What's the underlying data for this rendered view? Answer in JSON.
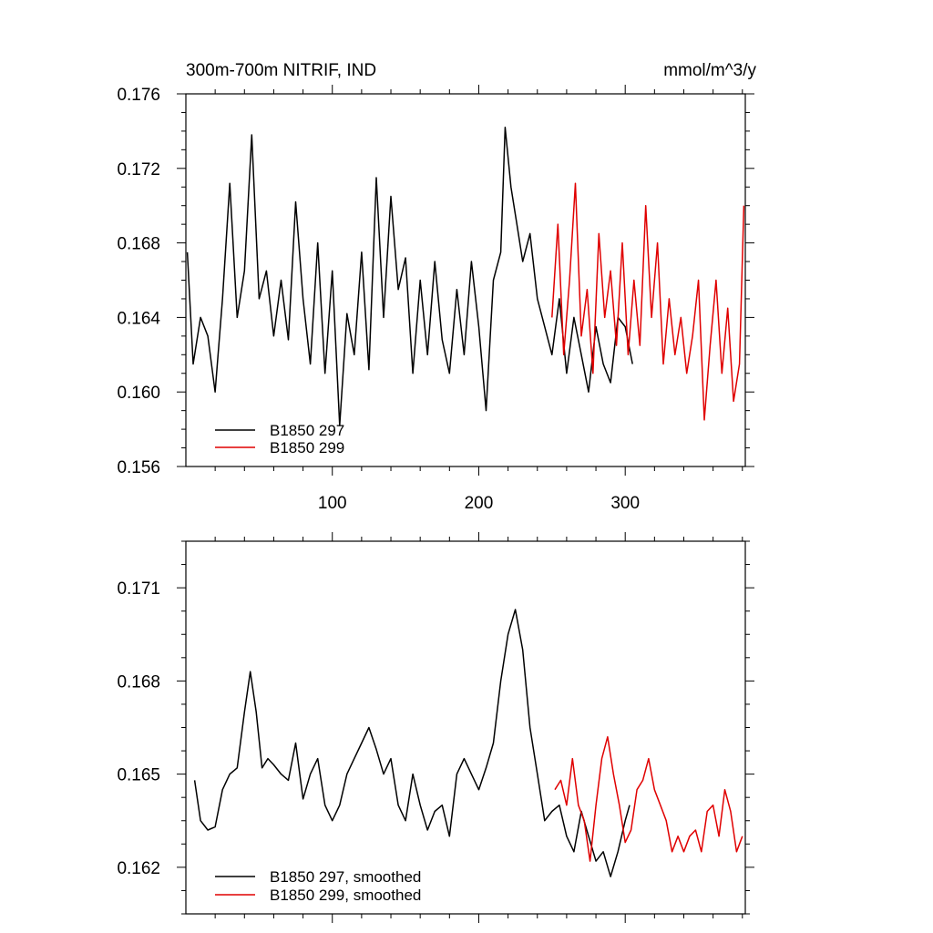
{
  "colors": {
    "series_a": "#000000",
    "series_b": "#e00000"
  },
  "chart_data": [
    {
      "type": "line",
      "title": "300m-700m NITRIF, IND",
      "units": "mmol/m^3/y",
      "xlim": [
        0,
        382
      ],
      "ylim": [
        0.156,
        0.176
      ],
      "xticks": [
        100,
        200,
        300
      ],
      "yticks": [
        0.156,
        0.16,
        0.164,
        0.168,
        0.172,
        0.176
      ],
      "ytick_labels": [
        "0.156",
        "0.160",
        "0.164",
        "0.168",
        "0.172",
        "0.176"
      ],
      "legend": "bottom-left",
      "series": [
        {
          "name": "B1850 297",
          "color": "#000000",
          "x": [
            1,
            5,
            10,
            15,
            20,
            25,
            30,
            35,
            40,
            45,
            50,
            55,
            60,
            65,
            70,
            75,
            80,
            85,
            90,
            95,
            100,
            105,
            110,
            115,
            120,
            125,
            130,
            135,
            140,
            145,
            150,
            155,
            160,
            165,
            170,
            175,
            180,
            185,
            190,
            195,
            200,
            205,
            210,
            215,
            218,
            222,
            226,
            230,
            235,
            240,
            245,
            250,
            255,
            260,
            265,
            270,
            275,
            280,
            285,
            290,
            295,
            300,
            305
          ],
          "y": [
            0.1675,
            0.1615,
            0.164,
            0.163,
            0.16,
            0.165,
            0.1712,
            0.164,
            0.1665,
            0.1738,
            0.165,
            0.1665,
            0.163,
            0.166,
            0.1628,
            0.1702,
            0.165,
            0.1615,
            0.168,
            0.161,
            0.1665,
            0.1582,
            0.1642,
            0.162,
            0.1675,
            0.1612,
            0.1715,
            0.164,
            0.1705,
            0.1655,
            0.1672,
            0.161,
            0.166,
            0.162,
            0.167,
            0.1628,
            0.161,
            0.1655,
            0.162,
            0.167,
            0.1635,
            0.159,
            0.166,
            0.1675,
            0.1742,
            0.171,
            0.169,
            0.167,
            0.1685,
            0.165,
            0.1635,
            0.162,
            0.165,
            0.161,
            0.164,
            0.162,
            0.16,
            0.1635,
            0.1615,
            0.1605,
            0.164,
            0.1635,
            0.1615
          ]
        },
        {
          "name": "B1850 299",
          "color": "#e00000",
          "x": [
            250,
            254,
            258,
            262,
            266,
            270,
            274,
            278,
            282,
            286,
            290,
            294,
            298,
            302,
            306,
            310,
            314,
            318,
            322,
            326,
            330,
            334,
            338,
            342,
            346,
            350,
            354,
            358,
            362,
            366,
            370,
            374,
            378,
            381
          ],
          "y": [
            0.164,
            0.169,
            0.162,
            0.166,
            0.1712,
            0.163,
            0.1655,
            0.161,
            0.1685,
            0.164,
            0.1665,
            0.1625,
            0.168,
            0.162,
            0.166,
            0.1625,
            0.17,
            0.164,
            0.168,
            0.1615,
            0.165,
            0.162,
            0.164,
            0.161,
            0.163,
            0.166,
            0.1585,
            0.1625,
            0.166,
            0.161,
            0.1645,
            0.1595,
            0.1615,
            0.17
          ]
        }
      ]
    },
    {
      "type": "line",
      "title": "",
      "units": "",
      "xlim": [
        0,
        382
      ],
      "ylim": [
        0.1605,
        0.1725
      ],
      "xticks": [
        100,
        200,
        300
      ],
      "yticks": [
        0.162,
        0.165,
        0.168,
        0.171
      ],
      "ytick_labels": [
        "0.162",
        "0.165",
        "0.168",
        "0.171"
      ],
      "legend": "bottom-left",
      "series": [
        {
          "name": "B1850 297, smoothed",
          "color": "#000000",
          "x": [
            6,
            10,
            15,
            20,
            25,
            30,
            35,
            40,
            44,
            48,
            52,
            56,
            60,
            65,
            70,
            75,
            80,
            85,
            90,
            95,
            100,
            105,
            110,
            115,
            120,
            125,
            130,
            135,
            140,
            145,
            150,
            155,
            160,
            165,
            170,
            175,
            180,
            185,
            190,
            195,
            200,
            205,
            210,
            215,
            220,
            225,
            230,
            235,
            240,
            245,
            250,
            255,
            260,
            265,
            270,
            275,
            280,
            285,
            290,
            295,
            300,
            303
          ],
          "y": [
            0.1648,
            0.1635,
            0.1632,
            0.1633,
            0.1645,
            0.165,
            0.1652,
            0.167,
            0.1683,
            0.167,
            0.1652,
            0.1655,
            0.1653,
            0.165,
            0.1648,
            0.166,
            0.1642,
            0.165,
            0.1655,
            0.164,
            0.1635,
            0.164,
            0.165,
            0.1655,
            0.166,
            0.1665,
            0.1658,
            0.165,
            0.1655,
            0.164,
            0.1635,
            0.165,
            0.164,
            0.1632,
            0.1638,
            0.164,
            0.163,
            0.165,
            0.1655,
            0.165,
            0.1645,
            0.1652,
            0.166,
            0.168,
            0.1695,
            0.1703,
            0.169,
            0.1665,
            0.165,
            0.1635,
            0.1638,
            0.164,
            0.163,
            0.1625,
            0.1638,
            0.163,
            0.1622,
            0.1625,
            0.1617,
            0.1625,
            0.1635,
            0.164
          ]
        },
        {
          "name": "B1850 299, smoothed",
          "color": "#e00000",
          "x": [
            252,
            256,
            260,
            264,
            268,
            272,
            276,
            280,
            284,
            288,
            292,
            296,
            300,
            304,
            308,
            312,
            316,
            320,
            324,
            328,
            332,
            336,
            340,
            344,
            348,
            352,
            356,
            360,
            364,
            368,
            372,
            376,
            380
          ],
          "y": [
            0.1645,
            0.1648,
            0.164,
            0.1655,
            0.164,
            0.1635,
            0.1622,
            0.164,
            0.1655,
            0.1662,
            0.165,
            0.164,
            0.1628,
            0.1632,
            0.1645,
            0.1648,
            0.1655,
            0.1645,
            0.164,
            0.1635,
            0.1625,
            0.163,
            0.1625,
            0.163,
            0.1632,
            0.1625,
            0.1638,
            0.164,
            0.163,
            0.1645,
            0.1638,
            0.1625,
            0.163
          ]
        }
      ]
    }
  ]
}
